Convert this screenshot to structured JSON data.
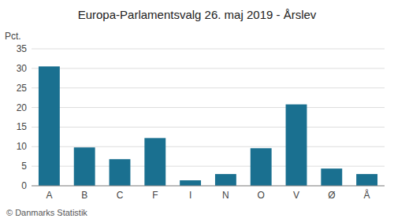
{
  "chart_data": {
    "type": "bar",
    "title": "Europa-Parlamentsvalg 26. maj 2019 - Årslev",
    "ylabel": "Pct.",
    "footer": "© Danmarks Statistik",
    "categories": [
      "A",
      "B",
      "C",
      "F",
      "I",
      "N",
      "O",
      "V",
      "Ø",
      "Å"
    ],
    "values": [
      30.5,
      9.8,
      6.8,
      12.2,
      1.4,
      3.0,
      9.6,
      20.8,
      4.4,
      3.0
    ],
    "color": "#1a7090",
    "ylim": [
      0,
      35
    ],
    "yticks": [
      0,
      5,
      10,
      15,
      20,
      25,
      30,
      35
    ],
    "grid": true
  }
}
